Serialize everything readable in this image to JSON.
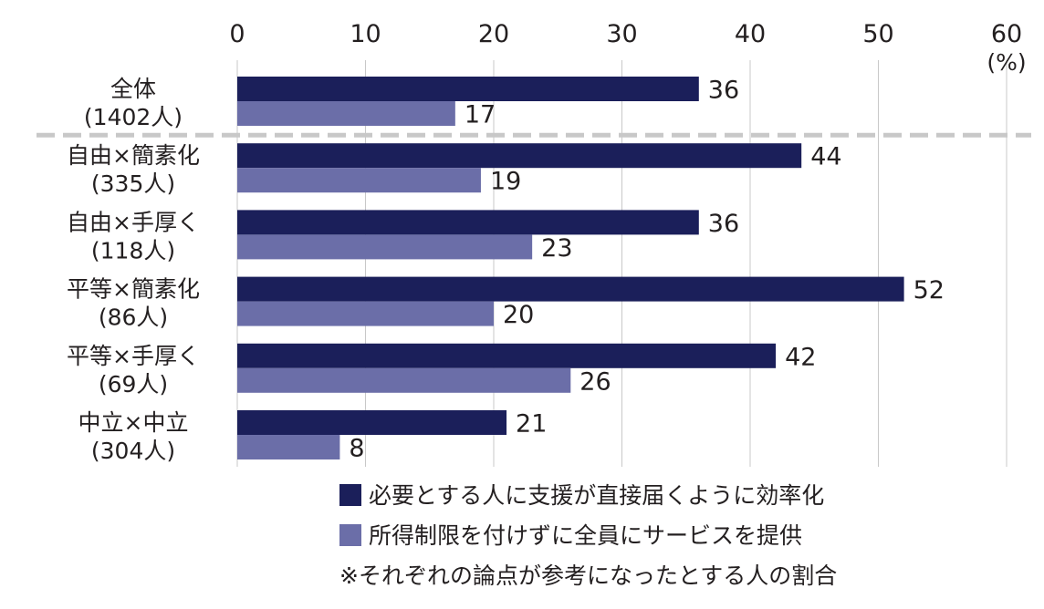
{
  "chart_data": {
    "type": "bar",
    "orientation": "horizontal",
    "categories": [
      {
        "name": "全体",
        "count": "(1402人)"
      },
      {
        "name": "自由×簡素化",
        "count": "(335人)"
      },
      {
        "name": "自由×手厚く",
        "count": "(118人)"
      },
      {
        "name": "平等×簡素化",
        "count": "(86人)"
      },
      {
        "name": "平等×手厚く",
        "count": "(69人)"
      },
      {
        "name": "中立×中立",
        "count": "(304人)"
      }
    ],
    "series": [
      {
        "name": "必要とする人に支援が直接届くように効率化",
        "color": "#1b1f5a",
        "values": [
          36,
          44,
          36,
          52,
          42,
          21
        ]
      },
      {
        "name": "所得制限を付けずに全員にサービスを提供",
        "color": "#6b6ea8",
        "values": [
          17,
          19,
          23,
          20,
          26,
          8
        ]
      }
    ],
    "xlim": [
      0,
      60
    ],
    "xticks": [
      0,
      10,
      20,
      30,
      40,
      50,
      60
    ],
    "unit": "(%)",
    "grid": true,
    "separator_after_category": 0,
    "legend_position": "bottom",
    "note": "※それぞれの論点が参考になったとする人の割合"
  }
}
